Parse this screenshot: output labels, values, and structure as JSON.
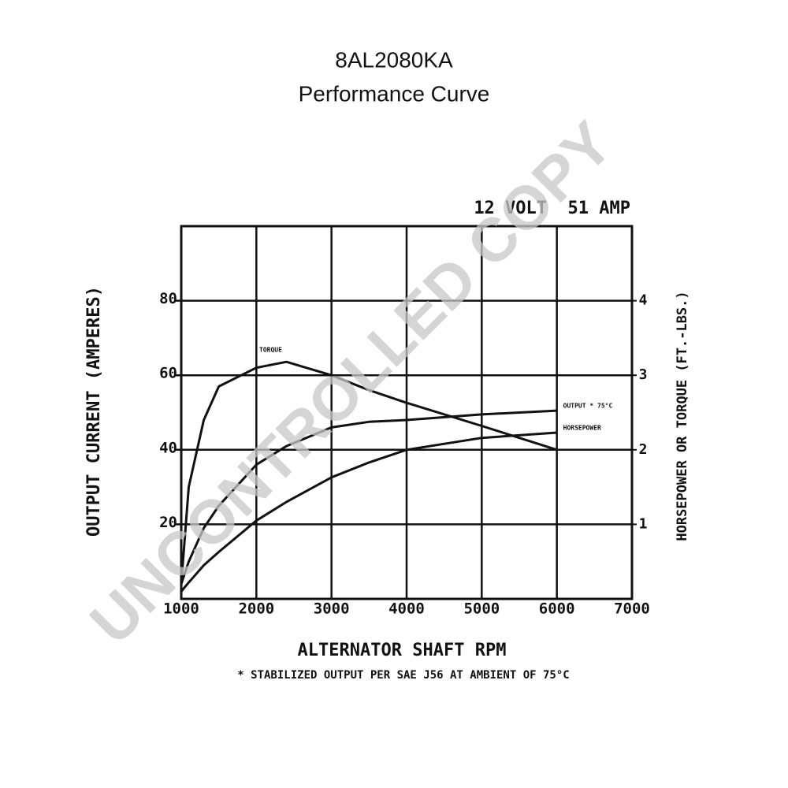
{
  "chart_data": {
    "type": "line",
    "title": "8AL2080KA",
    "subtitle": "Performance Curve",
    "header": "12 VOLT  51 AMP",
    "x_label": "ALTERNATOR SHAFT RPM",
    "y_label": "OUTPUT CURRENT (AMPERES)",
    "y2_label": "HORSEPOWER OR TORQUE (FT.-LBS.)",
    "footnote": "* STABILIZED OUTPUT PER SAE J56 AT AMBIENT OF 75°C",
    "watermark": "UNCONTROLLED COPY",
    "x": [
      1000,
      1100,
      1300,
      1500,
      2000,
      2400,
      3000,
      3500,
      4000,
      5000,
      6000
    ],
    "series": [
      {
        "name": "TORQUE",
        "color": "#111111",
        "axis": "y2",
        "values": [
          0.2,
          1.5,
          2.4,
          2.85,
          3.1,
          3.18,
          3.0,
          2.8,
          2.63,
          2.32,
          2.0
        ]
      },
      {
        "name": "OUTPUT * 75°C",
        "color": "#111111",
        "values": [
          4,
          10,
          19,
          25,
          36,
          41,
          46,
          47.5,
          48,
          49.5,
          50.5
        ]
      },
      {
        "name": "HORSEPOWER",
        "color": "#111111",
        "axis": "y2",
        "values": [
          0.1,
          0.22,
          0.45,
          0.63,
          1.05,
          1.3,
          1.63,
          1.83,
          2.0,
          2.16,
          2.23
        ]
      }
    ],
    "xlim": [
      1000,
      7000
    ],
    "xticks": [
      1000,
      2000,
      3000,
      4000,
      5000,
      6000,
      7000
    ],
    "ylim": [
      0,
      100
    ],
    "yticks": [
      20,
      40,
      60,
      80
    ],
    "y2lim": [
      0,
      5
    ],
    "y2ticks": [
      1,
      2,
      3,
      4
    ],
    "grid": true
  }
}
